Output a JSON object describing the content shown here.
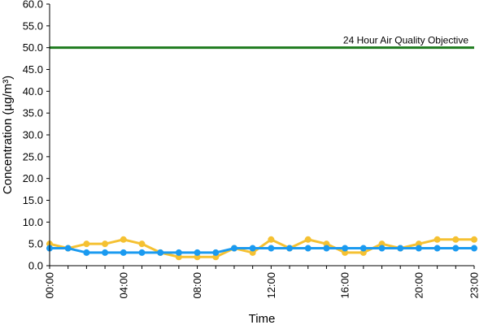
{
  "chart_data": {
    "type": "line",
    "xlabel": "Time",
    "ylabel": "Concentration (µg/m³)",
    "ylim": [
      0,
      60
    ],
    "yticks": [
      "0.0",
      "5.0",
      "10.0",
      "15.0",
      "20.0",
      "25.0",
      "30.0",
      "35.0",
      "40.0",
      "45.0",
      "50.0",
      "55.0",
      "60.0"
    ],
    "xticks": [
      "00:00",
      "04:00",
      "08:00",
      "12:00",
      "16:00",
      "20:00",
      "23:00"
    ],
    "xtick_hours": [
      0,
      4,
      8,
      12,
      16,
      20,
      23
    ],
    "x": [
      0,
      1,
      2,
      3,
      4,
      5,
      6,
      7,
      8,
      9,
      10,
      11,
      12,
      13,
      14,
      15,
      16,
      17,
      18,
      19,
      20,
      21,
      22,
      23
    ],
    "grid": false,
    "series": [
      {
        "color": "#f5c132",
        "values": [
          5,
          4,
          5,
          5,
          6,
          5,
          3,
          2,
          2,
          2,
          4,
          3,
          6,
          4,
          6,
          5,
          3,
          3,
          5,
          4,
          5,
          6,
          6,
          6
        ]
      },
      {
        "color": "#1a9af0",
        "values": [
          4,
          4,
          3,
          3,
          3,
          3,
          3,
          3,
          3,
          3,
          4,
          4,
          4,
          4,
          4,
          4,
          4,
          4,
          4,
          4,
          4,
          4,
          4,
          4
        ]
      }
    ],
    "reference_line": {
      "value": 50,
      "label": "24 Hour Air Quality Objective",
      "color": "#1e7b1e"
    }
  }
}
